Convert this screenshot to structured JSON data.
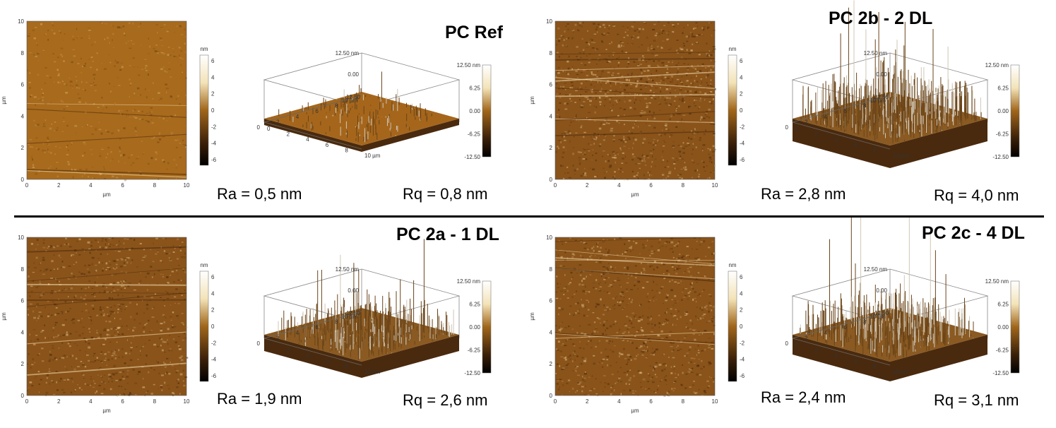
{
  "axis": {
    "unit_um": "µm",
    "unit_nm": "nm"
  },
  "colorbar_2d_ticks": [
    "6",
    "4",
    "2",
    "0",
    "-2",
    "-4",
    "-6"
  ],
  "colorbar_3d_ticks": [
    "12.50 nm",
    "6.25",
    "0.00",
    "-6.25",
    "-12.50"
  ],
  "map_x_ticks": [
    "0",
    "2",
    "4",
    "6",
    "8",
    "10"
  ],
  "map_y_ticks": [
    "10",
    "8",
    "6",
    "4",
    "2",
    "0"
  ],
  "z_labels": [
    "12.50 nm",
    "0.00",
    "-12.50"
  ],
  "panels": [
    {
      "id": "pc-ref",
      "title": "PC Ref",
      "ra": "Ra = 0,5 nm",
      "rq": "Rq = 0,8 nm",
      "roughness": 0.5
    },
    {
      "id": "pc-2b",
      "title": "PC 2b - 2 DL",
      "ra": "Ra = 2,8 nm",
      "rq": "Rq = 4,0 nm",
      "roughness": 2.8
    },
    {
      "id": "pc-2a",
      "title": "PC 2a - 1 DL",
      "ra": "Ra = 1,9 nm",
      "rq": "Rq = 2,6 nm",
      "roughness": 1.9
    },
    {
      "id": "pc-2c",
      "title": "PC 2c - 4 DL",
      "ra": "Ra = 2,4 nm",
      "rq": "Rq = 3,1 nm",
      "roughness": 2.4
    }
  ],
  "colors": {
    "afm_dark": "#3b2008",
    "afm_mid": "#a0661a",
    "afm_light": "#f3e3b8"
  }
}
